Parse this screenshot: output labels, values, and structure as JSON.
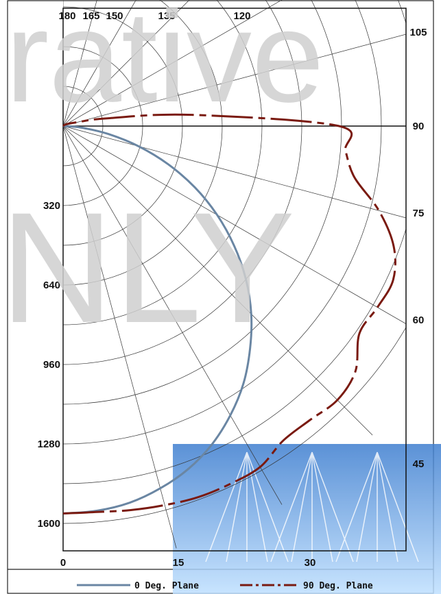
{
  "chart_data": {
    "type": "polar",
    "max_intensity": 1600,
    "radial_ticks": [
      "320",
      "640",
      "960",
      "1280",
      "1600"
    ],
    "angle_ticks_right": [
      "105",
      "90",
      "75",
      "60",
      "45"
    ],
    "angle_ticks_top": [
      "180",
      "165",
      "150",
      "135",
      "120"
    ],
    "angle_ticks_bottom": [
      "0",
      "15",
      "30"
    ],
    "grid": true,
    "legend_position": "bottom",
    "series": [
      {
        "name": "0 Deg. Plane",
        "color": "#6a86a3",
        "dash": "solid",
        "points": [
          [
            0,
            1560
          ],
          [
            5,
            1555
          ],
          [
            10,
            1540
          ],
          [
            15,
            1510
          ],
          [
            20,
            1470
          ],
          [
            25,
            1415
          ],
          [
            30,
            1345
          ],
          [
            35,
            1265
          ],
          [
            40,
            1170
          ],
          [
            45,
            1070
          ],
          [
            50,
            960
          ],
          [
            55,
            840
          ],
          [
            60,
            715
          ],
          [
            65,
            585
          ],
          [
            70,
            450
          ],
          [
            75,
            315
          ],
          [
            80,
            185
          ],
          [
            85,
            75
          ],
          [
            90,
            0
          ]
        ]
      },
      {
        "name": "90 Deg. Plane",
        "color": "#7a1a10",
        "dash": "dashdot",
        "points": [
          [
            0,
            1560
          ],
          [
            5,
            1560
          ],
          [
            10,
            1570
          ],
          [
            15,
            1580
          ],
          [
            20,
            1590
          ],
          [
            25,
            1590
          ],
          [
            30,
            1585
          ],
          [
            35,
            1545
          ],
          [
            40,
            1545
          ],
          [
            45,
            1560
          ],
          [
            50,
            1535
          ],
          [
            55,
            1455
          ],
          [
            60,
            1460
          ],
          [
            65,
            1465
          ],
          [
            70,
            1415
          ],
          [
            75,
            1315
          ],
          [
            80,
            1190
          ],
          [
            85,
            1140
          ],
          [
            90,
            1110
          ],
          [
            95,
            520
          ],
          [
            100,
            180
          ],
          [
            105,
            60
          ],
          [
            120,
            15
          ],
          [
            150,
            0
          ]
        ]
      }
    ],
    "watermark": [
      "rative",
      "NLY"
    ]
  }
}
